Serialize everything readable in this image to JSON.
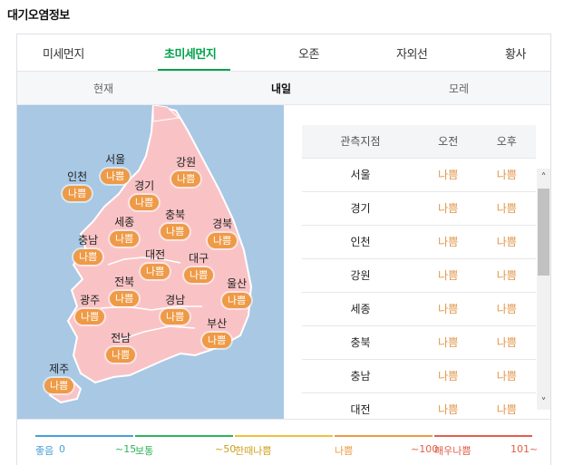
{
  "title": "대기오염정보",
  "tabs": [
    "미세먼지",
    "초미세먼지",
    "오존",
    "자외선",
    "황사"
  ],
  "days": [
    "현재",
    "내일",
    "모레"
  ],
  "grade_color": "#ee9a46",
  "accent": "#00a34a",
  "map_regions": [
    {
      "name": "서울",
      "grade": "나쁨"
    },
    {
      "name": "강원",
      "grade": "나쁨"
    },
    {
      "name": "인천",
      "grade": "나쁨"
    },
    {
      "name": "경기",
      "grade": "나쁨"
    },
    {
      "name": "충북",
      "grade": "나쁨"
    },
    {
      "name": "세종",
      "grade": "나쁨"
    },
    {
      "name": "경북",
      "grade": "나쁨"
    },
    {
      "name": "충남",
      "grade": "나쁨"
    },
    {
      "name": "대전",
      "grade": "나쁨"
    },
    {
      "name": "대구",
      "grade": "나쁨"
    },
    {
      "name": "전북",
      "grade": "나쁨"
    },
    {
      "name": "울산",
      "grade": "나쁨"
    },
    {
      "name": "광주",
      "grade": "나쁨"
    },
    {
      "name": "경남",
      "grade": "나쁨"
    },
    {
      "name": "부산",
      "grade": "나쁨"
    },
    {
      "name": "전남",
      "grade": "나쁨"
    },
    {
      "name": "제주",
      "grade": "나쁨"
    }
  ],
  "table": {
    "headers": [
      "관측지점",
      "오전",
      "오후"
    ],
    "rows": [
      {
        "station": "서울",
        "am": "나쁨",
        "pm": "나쁨"
      },
      {
        "station": "경기",
        "am": "나쁨",
        "pm": "나쁨"
      },
      {
        "station": "인천",
        "am": "나쁨",
        "pm": "나쁨"
      },
      {
        "station": "강원",
        "am": "나쁨",
        "pm": "나쁨"
      },
      {
        "station": "세종",
        "am": "나쁨",
        "pm": "나쁨"
      },
      {
        "station": "충북",
        "am": "나쁨",
        "pm": "나쁨"
      },
      {
        "station": "충남",
        "am": "나쁨",
        "pm": "나쁨"
      },
      {
        "station": "대전",
        "am": "나쁨",
        "pm": "나쁨"
      }
    ]
  },
  "legend": [
    {
      "label": "좋음",
      "min": "0",
      "color": "#4a9fd8"
    },
    {
      "label": "보통",
      "min": "~15",
      "color": "#2fb25a"
    },
    {
      "label": "한때나쁨",
      "min": "~50",
      "color": "#f0c040"
    },
    {
      "label": "나쁨",
      "min": "",
      "color": "#ee9a46"
    },
    {
      "label": "매우나쁨",
      "min": "~100",
      "color": "#e0604a"
    },
    {
      "label": "",
      "min": "101~",
      "color": "#e0604a"
    }
  ]
}
